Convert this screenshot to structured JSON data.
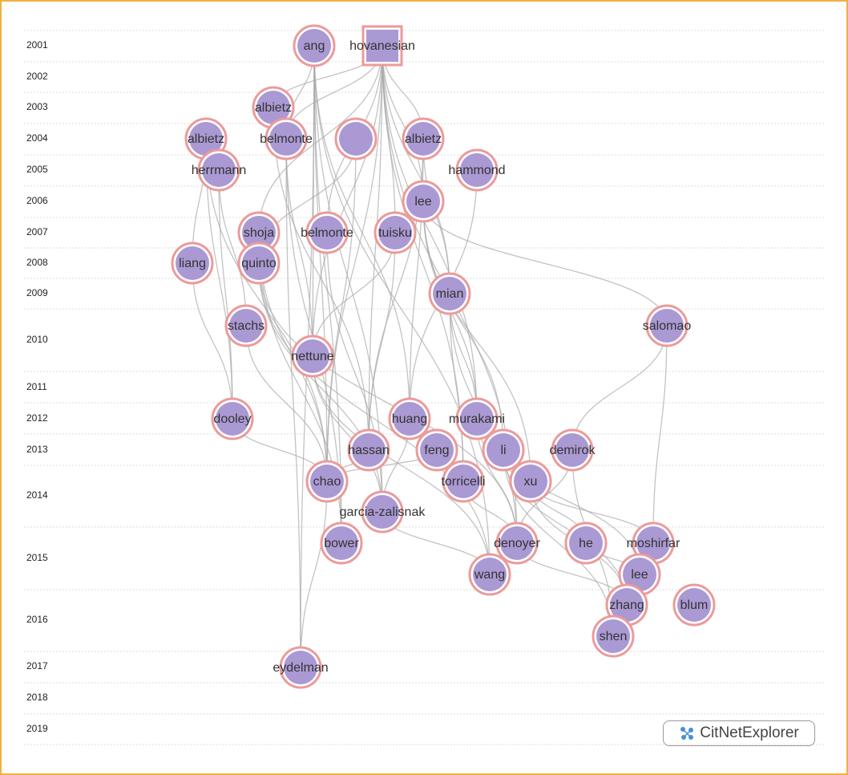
{
  "years": [
    "2001",
    "2002",
    "2003",
    "2004",
    "2005",
    "2006",
    "2007",
    "2008",
    "2009",
    "2010",
    "2011",
    "2012",
    "2013",
    "2014",
    "2015",
    "2016",
    "2017",
    "2018",
    "2019"
  ],
  "nodes": [
    {
      "label": "ang"
    },
    {
      "label": "hovanesian"
    },
    {
      "label": "albietz"
    },
    {
      "label": "albietz"
    },
    {
      "label": "belmonte"
    },
    {
      "label": null
    },
    {
      "label": "albietz"
    },
    {
      "label": "herrmann"
    },
    {
      "label": "hammond"
    },
    {
      "label": "lee"
    },
    {
      "label": "shoja"
    },
    {
      "label": "belmonte"
    },
    {
      "label": "tuisku"
    },
    {
      "label": "liang"
    },
    {
      "label": "quinto"
    },
    {
      "label": "mian"
    },
    {
      "label": "stachs"
    },
    {
      "label": "salomao"
    },
    {
      "label": "nettune"
    },
    {
      "label": "dooley"
    },
    {
      "label": "huang"
    },
    {
      "label": "murakami"
    },
    {
      "label": "hassan"
    },
    {
      "label": "feng"
    },
    {
      "label": "li"
    },
    {
      "label": "demirok"
    },
    {
      "label": "chao"
    },
    {
      "label": "torricelli"
    },
    {
      "label": "xu"
    },
    {
      "label": "garcia-zalisnak"
    },
    {
      "label": "bower"
    },
    {
      "label": "denoyer"
    },
    {
      "label": "he"
    },
    {
      "label": "moshirfar"
    },
    {
      "label": "wang"
    },
    {
      "label": "lee"
    },
    {
      "label": "zhang"
    },
    {
      "label": "blum"
    },
    {
      "label": "shen"
    },
    {
      "label": "eydelman"
    }
  ],
  "logo": "CitNetExplorer"
}
